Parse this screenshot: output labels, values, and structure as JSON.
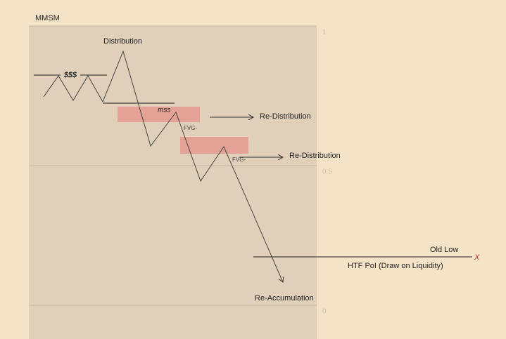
{
  "header": {
    "title": "MMSM"
  },
  "scale": {
    "ticks": [
      "1",
      "0.5",
      "0"
    ]
  },
  "annotations": {
    "distribution": "Distribution",
    "liquidity": "$$$",
    "mss": "mss",
    "fvg_1": "FVG-",
    "fvg_2": "FVG-",
    "re_distribution_1": "Re-Distribution",
    "re_distribution_2": "Re-Distribution",
    "old_low": "Old Low",
    "old_low_marker": "X",
    "htf_poi": "HTF PoI (Draw on Liquidity)",
    "re_accumulation": "Re-Accumulation"
  }
}
